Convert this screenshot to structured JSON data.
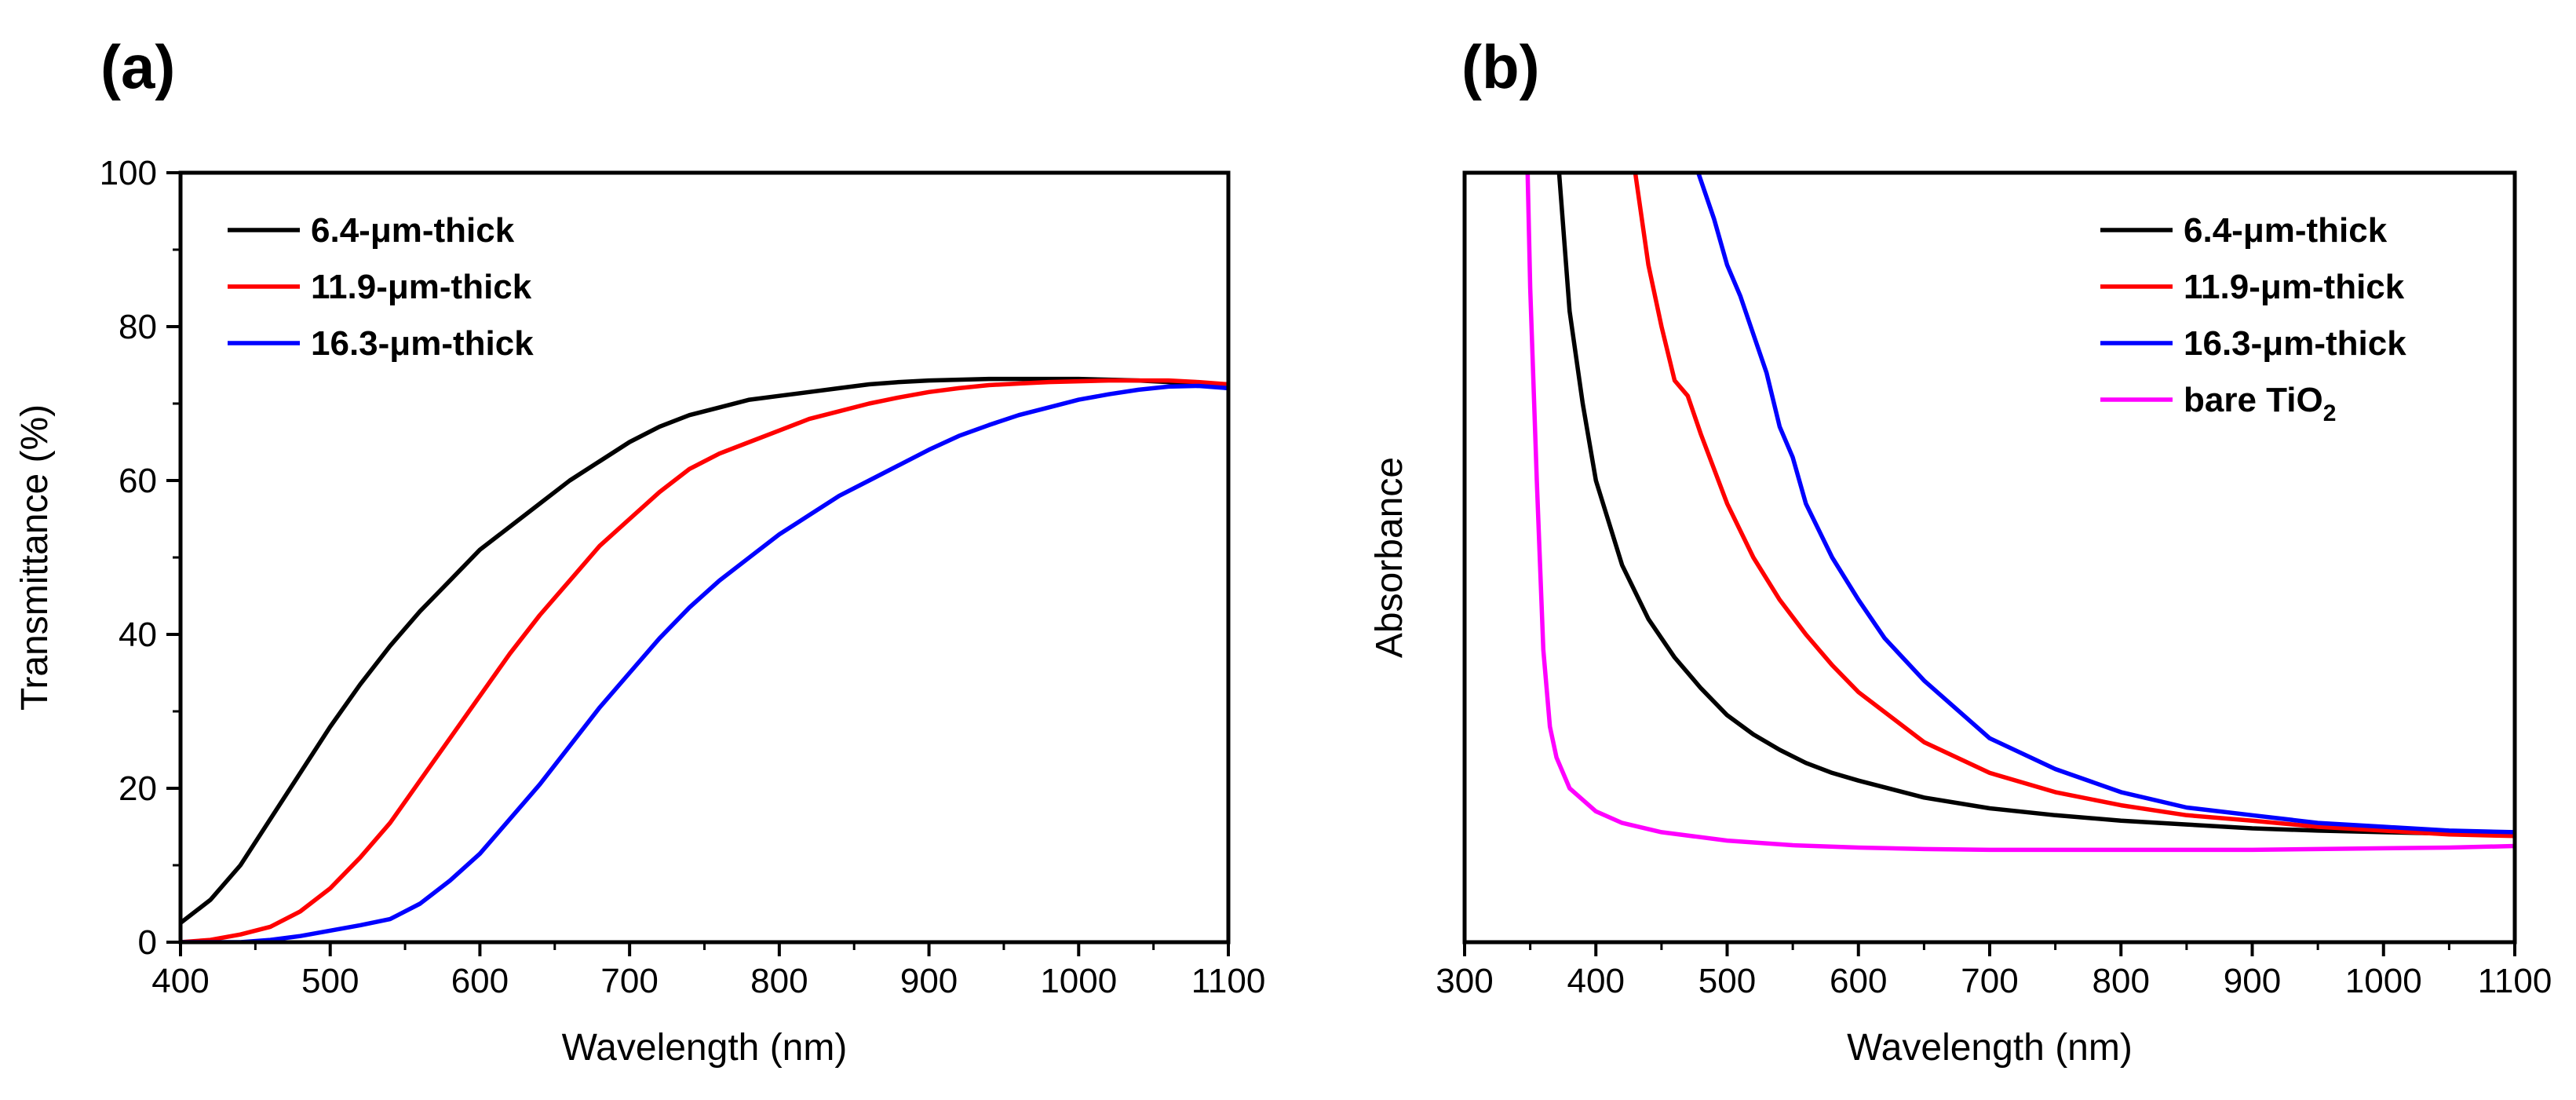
{
  "chart_data": [
    {
      "type": "line",
      "panel_label": "(a)",
      "title": "",
      "xlabel": "Wavelength (nm)",
      "ylabel": "Transmittance (%)",
      "xlim": [
        400,
        1100
      ],
      "ylim": [
        0,
        100
      ],
      "xticks": [
        400,
        500,
        600,
        700,
        800,
        900,
        1000,
        1100
      ],
      "yticks": [
        0,
        20,
        40,
        60,
        80,
        100
      ],
      "legend_position": "top-left",
      "series": [
        {
          "name": "6.4-μm-thick",
          "name_main": "6.4-μm-thick",
          "name_sub": "",
          "color": "#000000",
          "x": [
            400,
            420,
            440,
            460,
            480,
            500,
            520,
            540,
            560,
            580,
            600,
            620,
            640,
            660,
            680,
            700,
            720,
            740,
            760,
            780,
            800,
            820,
            840,
            860,
            880,
            900,
            920,
            940,
            960,
            980,
            1000,
            1020,
            1040,
            1060,
            1080,
            1100
          ],
          "y": [
            2.5,
            5.5,
            10,
            16,
            22,
            28,
            33.5,
            38.5,
            43,
            47,
            51,
            54,
            57,
            60,
            62.5,
            65,
            67,
            68.5,
            69.5,
            70.5,
            71,
            71.5,
            72,
            72.5,
            72.8,
            73,
            73.1,
            73.2,
            73.2,
            73.2,
            73.2,
            73.1,
            73,
            72.8,
            72.5,
            72
          ]
        },
        {
          "name": "11.9-μm-thick",
          "name_main": "11.9-μm-thick",
          "name_sub": "",
          "color": "#ff0000",
          "x": [
            400,
            420,
            440,
            460,
            480,
            500,
            520,
            540,
            560,
            580,
            600,
            620,
            640,
            660,
            680,
            700,
            720,
            740,
            760,
            780,
            800,
            820,
            840,
            860,
            880,
            900,
            920,
            940,
            960,
            980,
            1000,
            1020,
            1040,
            1060,
            1080,
            1100
          ],
          "y": [
            0,
            0.3,
            1,
            2,
            4,
            7,
            11,
            15.5,
            21,
            26.5,
            32,
            37.5,
            42.5,
            47,
            51.5,
            55,
            58.5,
            61.5,
            63.5,
            65,
            66.5,
            68,
            69,
            70,
            70.8,
            71.5,
            72,
            72.4,
            72.6,
            72.8,
            72.9,
            73,
            73,
            73,
            72.8,
            72.5
          ]
        },
        {
          "name": "16.3-μm-thick",
          "name_main": "16.3-μm-thick",
          "name_sub": "",
          "color": "#0000ff",
          "x": [
            400,
            420,
            440,
            460,
            480,
            500,
            520,
            540,
            560,
            580,
            600,
            620,
            640,
            660,
            680,
            700,
            720,
            740,
            760,
            780,
            800,
            820,
            840,
            860,
            880,
            900,
            920,
            940,
            960,
            980,
            1000,
            1020,
            1040,
            1060,
            1080,
            1100
          ],
          "y": [
            0,
            0,
            0,
            0.3,
            0.8,
            1.5,
            2.2,
            3,
            5,
            8,
            11.5,
            16,
            20.5,
            25.5,
            30.5,
            35,
            39.5,
            43.5,
            47,
            50,
            53,
            55.5,
            58,
            60,
            62,
            64,
            65.8,
            67.2,
            68.5,
            69.5,
            70.5,
            71.2,
            71.8,
            72.2,
            72.3,
            72
          ]
        }
      ]
    },
    {
      "type": "line",
      "panel_label": "(b)",
      "title": "",
      "xlabel": "Wavelength (nm)",
      "ylabel": "Absorbance",
      "xlim": [
        300,
        1100
      ],
      "ylim": [
        0,
        100
      ],
      "xticks": [
        300,
        400,
        500,
        600,
        700,
        800,
        900,
        1000,
        1100
      ],
      "yticks": [],
      "legend_position": "top-right",
      "series": [
        {
          "name": "6.4-μm-thick",
          "name_main": "6.4-μm-thick",
          "name_sub": "",
          "color": "#000000",
          "x": [
            372,
            380,
            390,
            400,
            420,
            440,
            460,
            480,
            500,
            520,
            540,
            560,
            580,
            600,
            650,
            700,
            750,
            800,
            850,
            900,
            950,
            1000,
            1050,
            1100
          ],
          "y": [
            100,
            82,
            70,
            60,
            49,
            42,
            37,
            33,
            29.5,
            27,
            25,
            23.3,
            22,
            21,
            18.8,
            17.4,
            16.5,
            15.8,
            15.3,
            14.8,
            14.5,
            14.3,
            14.1,
            14
          ]
        },
        {
          "name": "11.9-μm-thick",
          "name_main": "11.9-μm-thick",
          "name_sub": "",
          "color": "#ff0000",
          "x": [
            430,
            440,
            450,
            460,
            470,
            480,
            500,
            520,
            540,
            560,
            580,
            600,
            650,
            700,
            750,
            800,
            850,
            900,
            950,
            1000,
            1050,
            1100
          ],
          "y": [
            100,
            88,
            80,
            73,
            71,
            66,
            57,
            50,
            44.5,
            40,
            36,
            32.5,
            26,
            22,
            19.5,
            17.8,
            16.5,
            15.8,
            15,
            14.5,
            14,
            13.8
          ]
        },
        {
          "name": "16.3-μm-thick",
          "name_main": "16.3-μm-thick",
          "name_sub": "",
          "color": "#0000ff",
          "x": [
            478,
            490,
            500,
            510,
            520,
            530,
            540,
            550,
            560,
            580,
            600,
            620,
            650,
            700,
            750,
            800,
            850,
            900,
            950,
            1000,
            1050,
            1100
          ],
          "y": [
            100,
            94,
            88,
            84,
            79,
            74,
            67,
            63,
            57,
            50,
            44.5,
            39.5,
            34,
            26.5,
            22.5,
            19.5,
            17.5,
            16.5,
            15.5,
            15,
            14.5,
            14.3
          ]
        },
        {
          "name": "bare TiO2",
          "name_main": "bare TiO",
          "name_sub": "2",
          "color": "#ff00ff",
          "x": [
            348,
            350,
            355,
            360,
            365,
            370,
            380,
            390,
            400,
            420,
            450,
            500,
            550,
            600,
            650,
            700,
            750,
            800,
            850,
            900,
            950,
            1000,
            1050,
            1100
          ],
          "y": [
            100,
            85,
            60,
            38,
            28,
            24,
            20,
            18.5,
            17,
            15.5,
            14.3,
            13.2,
            12.6,
            12.3,
            12.1,
            12,
            12,
            12,
            12,
            12,
            12.1,
            12.2,
            12.3,
            12.5
          ]
        }
      ]
    }
  ]
}
